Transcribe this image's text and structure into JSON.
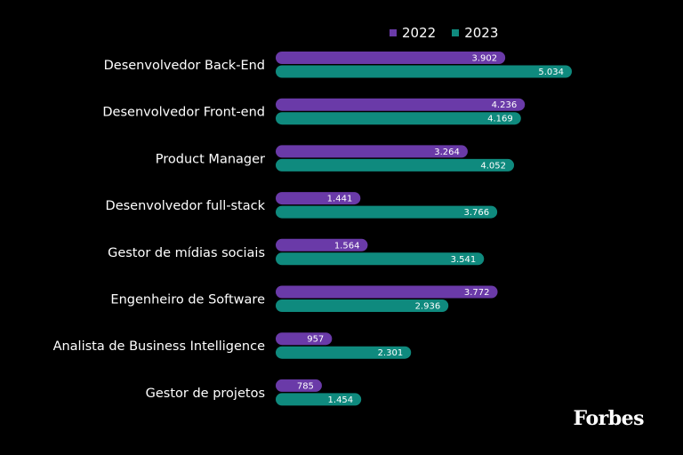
{
  "legend": {
    "series_2022": "2022",
    "series_2023": "2023"
  },
  "brand": "Forbes",
  "colors": {
    "background": "#000000",
    "series_2022": "#6a3aa8",
    "series_2023": "#0f8a7e",
    "text": "#ffffff"
  },
  "chart_data": {
    "type": "bar",
    "orientation": "horizontal",
    "title": "",
    "xlabel": "",
    "ylabel": "",
    "categories": [
      "Desenvolvedor Back-End",
      "Desenvolvedor Front-end",
      "Product Manager",
      "Desenvolvedor full-stack",
      "Gestor de mídias sociais",
      "Engenheiro de Software",
      "Analista de Business Intelligence",
      "Gestor de projetos"
    ],
    "series": [
      {
        "name": "2022",
        "values": [
          3902,
          4236,
          3264,
          1441,
          1564,
          3772,
          957,
          785
        ],
        "labels": [
          "3.902",
          "4.236",
          "3.264",
          "1.441",
          "1.564",
          "3.772",
          "957",
          "785"
        ]
      },
      {
        "name": "2023",
        "values": [
          5034,
          4169,
          4052,
          3766,
          3541,
          2936,
          2301,
          1454
        ],
        "labels": [
          "5.034",
          "4.169",
          "4.052",
          "3.766",
          "3.541",
          "2.936",
          "2.301",
          "1.454"
        ]
      }
    ],
    "xlim": [
      0,
      5034
    ],
    "grid": false,
    "legend_position": "top-right"
  }
}
